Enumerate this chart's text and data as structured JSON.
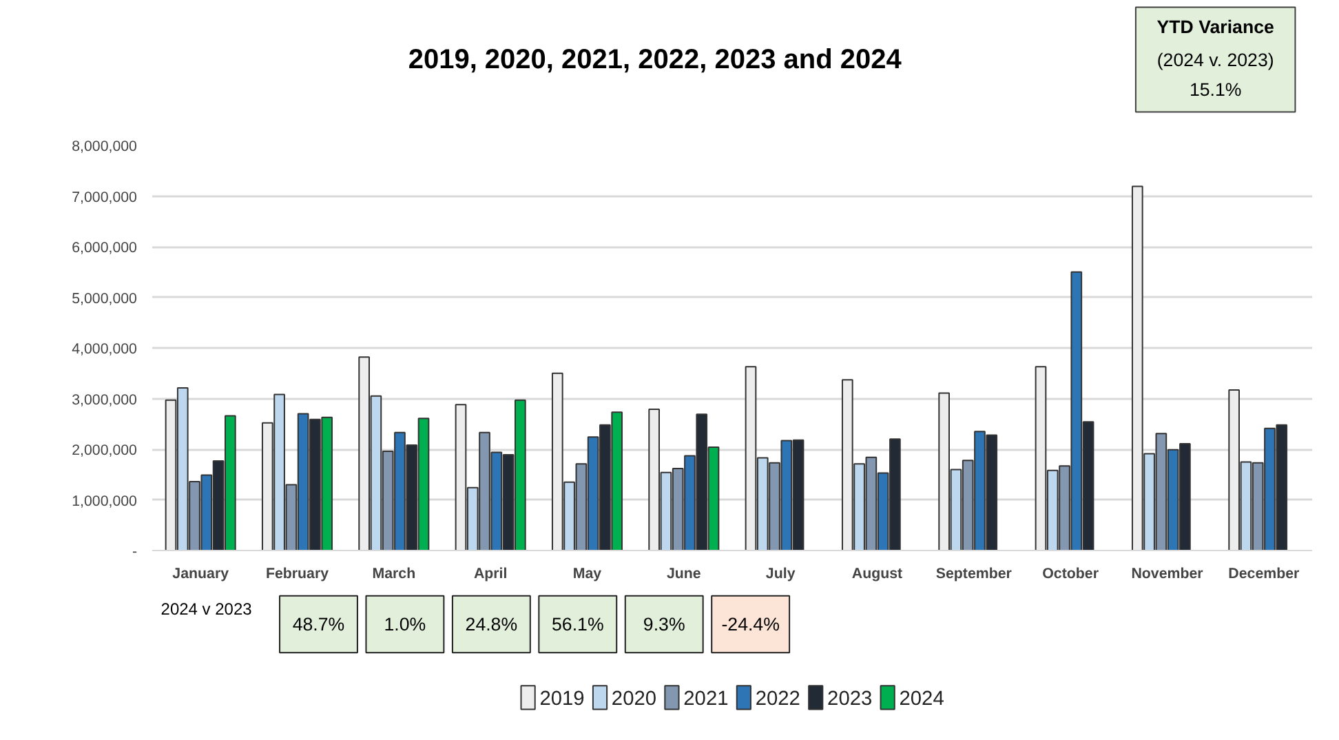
{
  "chart_data": {
    "type": "bar",
    "title": "2019, 2020, 2021, 2022, 2023 and 2024",
    "categories": [
      "January",
      "February",
      "March",
      "April",
      "May",
      "June",
      "July",
      "August",
      "September",
      "October",
      "November",
      "December"
    ],
    "series": [
      {
        "name": "2019",
        "color": "#ededed",
        "values": [
          2970000,
          2520000,
          3820000,
          2880000,
          3500000,
          2790000,
          3630000,
          3370000,
          3110000,
          3630000,
          7190000,
          3170000
        ]
      },
      {
        "name": "2020",
        "color": "#bdd7ee",
        "values": [
          3210000,
          3080000,
          3050000,
          1240000,
          1350000,
          1540000,
          1830000,
          1710000,
          1600000,
          1580000,
          1910000,
          1750000
        ]
      },
      {
        "name": "2021",
        "color": "#8497b0",
        "values": [
          1360000,
          1300000,
          1960000,
          2330000,
          1710000,
          1620000,
          1730000,
          1840000,
          1780000,
          1670000,
          2310000,
          1730000
        ]
      },
      {
        "name": "2022",
        "color": "#2e75b6",
        "values": [
          1490000,
          2700000,
          2330000,
          1940000,
          2240000,
          1870000,
          2170000,
          1530000,
          2350000,
          5500000,
          1990000,
          2410000
        ]
      },
      {
        "name": "2023",
        "color": "#222a35",
        "values": [
          1770000,
          2590000,
          2080000,
          1890000,
          2480000,
          2690000,
          2180000,
          2200000,
          2280000,
          2540000,
          2110000,
          2480000
        ]
      },
      {
        "name": "2024",
        "color": "#00b050",
        "values": [
          2660000,
          2630000,
          2610000,
          2970000,
          2730000,
          2040000,
          null,
          null,
          null,
          null,
          null,
          null
        ]
      }
    ],
    "ylim": [
      0,
      8000000
    ],
    "yticks": [
      {
        "value": 0,
        "label": "-"
      },
      {
        "value": 1000000,
        "label": "1,000,000"
      },
      {
        "value": 2000000,
        "label": "2,000,000"
      },
      {
        "value": 3000000,
        "label": "3,000,000"
      },
      {
        "value": 4000000,
        "label": "4,000,000"
      },
      {
        "value": 5000000,
        "label": "5,000,000"
      },
      {
        "value": 6000000,
        "label": "6,000,000"
      },
      {
        "value": 7000000,
        "label": "7,000,000"
      },
      {
        "value": 8000000,
        "label": "8,000,000"
      }
    ],
    "grid": "y",
    "legend": "bottom",
    "annotations": [
      "YTD Variance",
      "(2024 v. 2023)",
      "15.1%",
      "2024 v 2023",
      "48.7%",
      "1.0%",
      "24.8%",
      "56.1%",
      "9.3%",
      "-24.4%"
    ]
  }
}
